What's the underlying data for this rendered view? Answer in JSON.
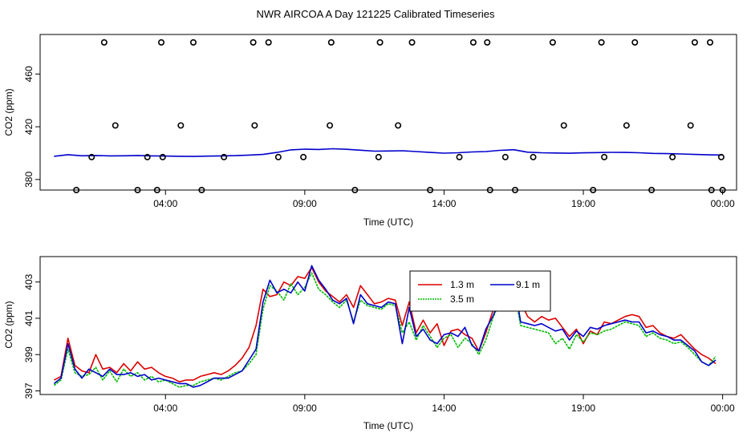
{
  "page_title": "NWR AIRCOA A  Day 121225  Calibrated Timeseries",
  "chart_data": [
    {
      "type": "line",
      "xlabel": "Time (UTC)",
      "ylabel": "CO2 (ppm)",
      "x_tick_labels": [
        "04:00",
        "09:00",
        "14:00",
        "19:00",
        "00:00"
      ],
      "x_tick_hours": [
        4,
        9,
        14,
        19,
        24
      ],
      "y_ticks": [
        380,
        420,
        460
      ],
      "xlim_hours": [
        -0.5,
        24.5
      ],
      "ylim": [
        372,
        490
      ],
      "grid": false,
      "series": [
        {
          "color": "#0000cc",
          "x_hours": [
            0,
            0.5,
            1,
            1.5,
            2,
            2.5,
            3,
            3.5,
            4,
            4.5,
            5,
            5.5,
            6,
            6.5,
            7,
            7.5,
            8,
            8.5,
            9,
            9.5,
            10,
            10.5,
            11,
            11.5,
            12,
            12.5,
            13,
            13.5,
            14,
            14.5,
            15,
            15.5,
            16,
            16.5,
            17,
            17.5,
            18,
            18.5,
            19,
            19.5,
            20,
            20.5,
            21,
            21.5,
            22,
            22.5,
            23,
            23.5,
            24
          ],
          "values": [
            397.6,
            398.8,
            398.0,
            398.2,
            397.9,
            398.0,
            398.2,
            397.9,
            397.8,
            397.6,
            397.5,
            397.7,
            397.9,
            398.1,
            398.5,
            399.0,
            400.5,
            402.5,
            403.0,
            402.8,
            403.3,
            402.9,
            402.2,
            401.5,
            401.6,
            401.8,
            401.2,
            400.5,
            400.0,
            400.3,
            400.9,
            401.2,
            402.1,
            402.6,
            400.7,
            400.3,
            400.1,
            399.9,
            400.2,
            400.4,
            400.6,
            400.5,
            400.3,
            399.8,
            399.6,
            399.4,
            399.0,
            398.7,
            398.6
          ]
        }
      ],
      "calibration_points": {
        "symbol": "circle",
        "x_hours": [
          0.8,
          1.35,
          2.2,
          3.0,
          3.35,
          3.7,
          3.9,
          4.55,
          5.3,
          6.1,
          7.2,
          8.05,
          8.95,
          9.9,
          10.8,
          11.65,
          12.35,
          13.5,
          14.55,
          15.65,
          16.2,
          16.55,
          17.2,
          18.3,
          19.35,
          19.75,
          20.55,
          21.45,
          22.2,
          22.85,
          23.6,
          23.95,
          24.0
        ],
        "values": [
          372,
          397,
          421,
          372,
          397,
          372,
          397,
          421,
          372,
          397,
          421,
          397,
          397,
          421,
          372,
          397,
          421,
          372,
          397,
          372,
          397,
          372,
          397,
          421,
          372,
          397,
          421,
          372,
          397,
          421,
          372,
          397,
          372
        ]
      },
      "calibration_top_points": {
        "x_hours": [
          1.8,
          3.85,
          5.0,
          7.15,
          7.7,
          9.95,
          11.7,
          12.85,
          15.05,
          15.55,
          17.9,
          19.65,
          20.85,
          23.0,
          23.55
        ],
        "values": [
          484,
          484,
          484,
          484,
          484,
          484,
          484,
          484,
          484,
          484,
          484,
          484,
          484,
          484,
          484
        ]
      }
    },
    {
      "type": "line",
      "xlabel": "Time (UTC)",
      "ylabel": "CO2 (ppm)",
      "x_tick_labels": [
        "04:00",
        "09:00",
        "14:00",
        "19:00",
        "00:00"
      ],
      "x_tick_hours": [
        4,
        9,
        14,
        19,
        24
      ],
      "y_ticks": [
        397,
        399,
        401,
        403
      ],
      "xlim_hours": [
        -0.5,
        24.5
      ],
      "ylim": [
        396.8,
        404.4
      ],
      "grid": false,
      "legend_position": "top-center",
      "series": [
        {
          "name": "1.3 m",
          "color": "#dd0000",
          "x_hours": [
            0,
            0.25,
            0.5,
            0.75,
            1,
            1.25,
            1.5,
            1.75,
            2,
            2.25,
            2.5,
            2.75,
            3,
            3.25,
            3.5,
            3.75,
            4,
            4.25,
            4.5,
            4.75,
            5,
            5.25,
            5.5,
            5.75,
            6,
            6.25,
            6.5,
            6.75,
            7,
            7.25,
            7.5,
            7.75,
            8,
            8.25,
            8.5,
            8.75,
            9,
            9.25,
            9.5,
            9.75,
            10,
            10.25,
            10.5,
            10.75,
            11,
            11.25,
            11.5,
            11.75,
            12,
            12.25,
            12.5,
            12.75,
            13,
            13.25,
            13.5,
            13.75,
            14,
            14.25,
            14.5,
            14.75,
            15,
            15.25,
            15.5,
            15.75,
            16,
            16.25,
            16.5,
            16.75,
            17,
            17.25,
            17.5,
            17.75,
            18,
            18.25,
            18.5,
            18.75,
            19,
            19.25,
            19.5,
            19.75,
            20,
            20.25,
            20.5,
            20.75,
            21,
            21.25,
            21.5,
            21.75,
            22,
            22.25,
            22.5,
            22.75,
            23,
            23.25,
            23.5,
            23.75
          ],
          "values": [
            397.6,
            397.8,
            399.9,
            398.4,
            398.1,
            398.0,
            399.0,
            398.2,
            398.3,
            398.0,
            398.5,
            398.1,
            398.6,
            398.2,
            398.3,
            398.0,
            397.8,
            397.7,
            397.5,
            397.6,
            397.6,
            397.8,
            397.9,
            398.0,
            397.9,
            398.1,
            398.4,
            398.8,
            399.4,
            400.6,
            402.6,
            402.2,
            402.3,
            403.0,
            402.8,
            403.3,
            403.2,
            403.8,
            403.0,
            402.5,
            402.2,
            401.9,
            402.3,
            401.6,
            402.8,
            402.3,
            401.8,
            401.9,
            402.1,
            402.0,
            400.6,
            401.9,
            400.2,
            400.9,
            400.2,
            400.7,
            399.5,
            400.3,
            400.4,
            400.1,
            399.9,
            399.2,
            400.2,
            401.4,
            402.3,
            402.5,
            403.0,
            401.9,
            401.1,
            400.8,
            401.1,
            400.9,
            401.0,
            400.5,
            400.0,
            400.4,
            399.6,
            400.3,
            400.1,
            400.8,
            400.7,
            400.9,
            401.1,
            401.2,
            401.1,
            400.5,
            400.6,
            400.2,
            400.0,
            399.9,
            400.1,
            399.7,
            399.3,
            399.0,
            398.8,
            398.5
          ]
        },
        {
          "name": "3.5 m",
          "color": "#00bb00",
          "x_hours": [
            0,
            0.25,
            0.5,
            0.75,
            1,
            1.25,
            1.5,
            1.75,
            2,
            2.25,
            2.5,
            2.75,
            3,
            3.25,
            3.5,
            3.75,
            4,
            4.25,
            4.5,
            4.75,
            5,
            5.25,
            5.5,
            5.75,
            6,
            6.25,
            6.5,
            6.75,
            7,
            7.25,
            7.5,
            7.75,
            8,
            8.25,
            8.5,
            8.75,
            9,
            9.25,
            9.5,
            9.75,
            10,
            10.25,
            10.5,
            10.75,
            11,
            11.25,
            11.5,
            11.75,
            12,
            12.25,
            12.5,
            12.75,
            13,
            13.25,
            13.5,
            13.75,
            14,
            14.25,
            14.5,
            14.75,
            15,
            15.25,
            15.5,
            15.75,
            16,
            16.25,
            16.5,
            16.75,
            17,
            17.25,
            17.5,
            17.75,
            18,
            18.25,
            18.5,
            18.75,
            19,
            19.25,
            19.5,
            19.75,
            20,
            20.25,
            20.5,
            20.75,
            21,
            21.25,
            21.5,
            21.75,
            22,
            22.25,
            22.5,
            22.75,
            23,
            23.25,
            23.5,
            23.75
          ],
          "values": [
            397.3,
            397.6,
            399.3,
            398.0,
            397.8,
            397.9,
            398.3,
            397.6,
            398.1,
            397.5,
            398.2,
            397.8,
            398.0,
            397.6,
            397.8,
            397.5,
            397.6,
            397.4,
            397.2,
            397.3,
            397.3,
            397.5,
            397.6,
            397.7,
            397.6,
            397.8,
            398.0,
            398.1,
            398.5,
            399.0,
            401.5,
            402.8,
            402.5,
            402.0,
            402.9,
            402.3,
            402.7,
            403.5,
            402.6,
            402.3,
            401.9,
            401.6,
            402.0,
            400.8,
            402.0,
            401.7,
            401.6,
            401.5,
            401.8,
            401.7,
            400.2,
            400.8,
            399.8,
            400.6,
            400.0,
            399.4,
            399.9,
            400.1,
            399.4,
            399.9,
            399.6,
            399.0,
            399.8,
            401.0,
            401.9,
            402.1,
            402.7,
            400.6,
            400.5,
            400.4,
            400.3,
            400.2,
            399.6,
            399.9,
            399.3,
            400.1,
            399.7,
            400.2,
            400.1,
            400.3,
            400.4,
            400.6,
            400.8,
            400.7,
            400.6,
            400.0,
            400.2,
            399.9,
            399.8,
            399.6,
            399.7,
            399.4,
            399.0,
            398.6,
            398.4,
            398.9
          ]
        },
        {
          "name": "9.1 m",
          "color": "#0000cc",
          "x_hours": [
            0,
            0.25,
            0.5,
            0.75,
            1,
            1.25,
            1.5,
            1.75,
            2,
            2.25,
            2.5,
            2.75,
            3,
            3.25,
            3.5,
            3.75,
            4,
            4.25,
            4.5,
            4.75,
            5,
            5.25,
            5.5,
            5.75,
            6,
            6.25,
            6.5,
            6.75,
            7,
            7.25,
            7.5,
            7.75,
            8,
            8.25,
            8.5,
            8.75,
            9,
            9.25,
            9.5,
            9.75,
            10,
            10.25,
            10.5,
            10.75,
            11,
            11.25,
            11.5,
            11.75,
            12,
            12.25,
            12.5,
            12.75,
            13,
            13.25,
            13.5,
            13.75,
            14,
            14.25,
            14.5,
            14.75,
            15,
            15.25,
            15.5,
            15.75,
            16,
            16.25,
            16.5,
            16.75,
            17,
            17.25,
            17.5,
            17.75,
            18,
            18.25,
            18.5,
            18.75,
            19,
            19.25,
            19.5,
            19.75,
            20,
            20.25,
            20.5,
            20.75,
            21,
            21.25,
            21.5,
            21.75,
            22,
            22.25,
            22.5,
            22.75,
            23,
            23.25,
            23.5,
            23.75
          ],
          "values": [
            397.4,
            397.7,
            399.6,
            398.2,
            397.7,
            398.2,
            398.0,
            397.8,
            398.2,
            397.9,
            397.9,
            398.0,
            397.8,
            397.9,
            397.6,
            397.7,
            397.6,
            397.5,
            397.4,
            397.4,
            397.2,
            397.3,
            397.5,
            397.7,
            397.7,
            397.7,
            397.9,
            398.1,
            398.7,
            399.3,
            401.9,
            403.1,
            402.4,
            402.6,
            402.4,
            403.0,
            402.5,
            403.9,
            403.1,
            402.6,
            402.0,
            401.8,
            402.1,
            400.7,
            402.3,
            401.8,
            401.7,
            401.6,
            401.9,
            401.8,
            399.6,
            401.6,
            400.0,
            400.4,
            399.8,
            399.6,
            400.1,
            400.2,
            400.0,
            400.5,
            399.5,
            399.2,
            400.4,
            401.1,
            402.0,
            402.2,
            403.1,
            400.8,
            400.7,
            400.6,
            400.7,
            400.5,
            400.3,
            400.4,
            399.8,
            400.3,
            400.0,
            400.5,
            400.4,
            400.6,
            400.7,
            400.8,
            400.9,
            400.8,
            400.8,
            400.2,
            400.3,
            400.1,
            400.0,
            399.8,
            399.8,
            399.5,
            399.2,
            398.6,
            398.4,
            398.7
          ]
        }
      ]
    }
  ]
}
